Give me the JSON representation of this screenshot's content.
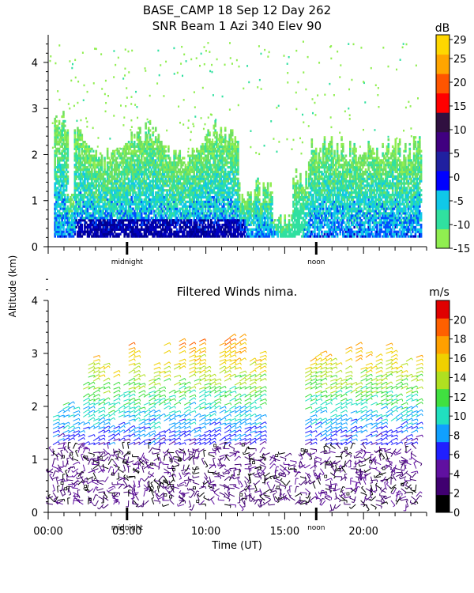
{
  "chart_data": [
    {
      "type": "heatmap",
      "title": "BASE_CAMP  18 Sep 12 Day 262",
      "subtitle": "SNR Beam 1 Azi 340 Elev 90",
      "ylabel": "Altitude (km)",
      "ylim": [
        0,
        4.6
      ],
      "xlim_hours": [
        0,
        24
      ],
      "yticks": [
        0,
        1,
        2,
        3,
        4
      ],
      "x_markers": [
        {
          "label": "midnight",
          "hour": 5
        },
        {
          "label": "noon",
          "hour": 17
        }
      ],
      "colorbar": {
        "unit": "dB",
        "range": [
          -15,
          30
        ],
        "ticks": [
          29,
          25,
          20,
          15,
          10,
          5,
          0,
          -5,
          -10,
          -15
        ],
        "colors": [
          "#90ee50",
          "#30e0a0",
          "#10c8e8",
          "#0000ff",
          "#2020a0",
          "#400080",
          "#301040",
          "#ff0000",
          "#ff5500",
          "#ffa500",
          "#ffd700"
        ]
      }
    },
    {
      "type": "scatter",
      "title": "Filtered Winds nima.",
      "xlabel": "Time (UT)",
      "ylim": [
        0,
        4
      ],
      "xlim_hours": [
        0,
        24
      ],
      "yticks": [
        0,
        1,
        2,
        3,
        4
      ],
      "xticks": [
        {
          "label": "00:00",
          "hour": 0
        },
        {
          "label": "05:00",
          "hour": 5
        },
        {
          "label": "10:00",
          "hour": 10
        },
        {
          "label": "15:00",
          "hour": 15
        },
        {
          "label": "20:00",
          "hour": 20
        }
      ],
      "x_markers": [
        {
          "label": "midnight",
          "hour": 5
        },
        {
          "label": "noon",
          "hour": 17
        }
      ],
      "colorbar": {
        "unit": "m/s",
        "range": [
          0,
          22
        ],
        "ticks": [
          20,
          18,
          16,
          14,
          12,
          10,
          8,
          6,
          4,
          2,
          0
        ],
        "colors": [
          "#000000",
          "#400070",
          "#6010a0",
          "#2020ff",
          "#10a0ff",
          "#20e0c0",
          "#40e040",
          "#b0e020",
          "#f0d000",
          "#ffa000",
          "#ff6000",
          "#e00000"
        ]
      }
    }
  ]
}
